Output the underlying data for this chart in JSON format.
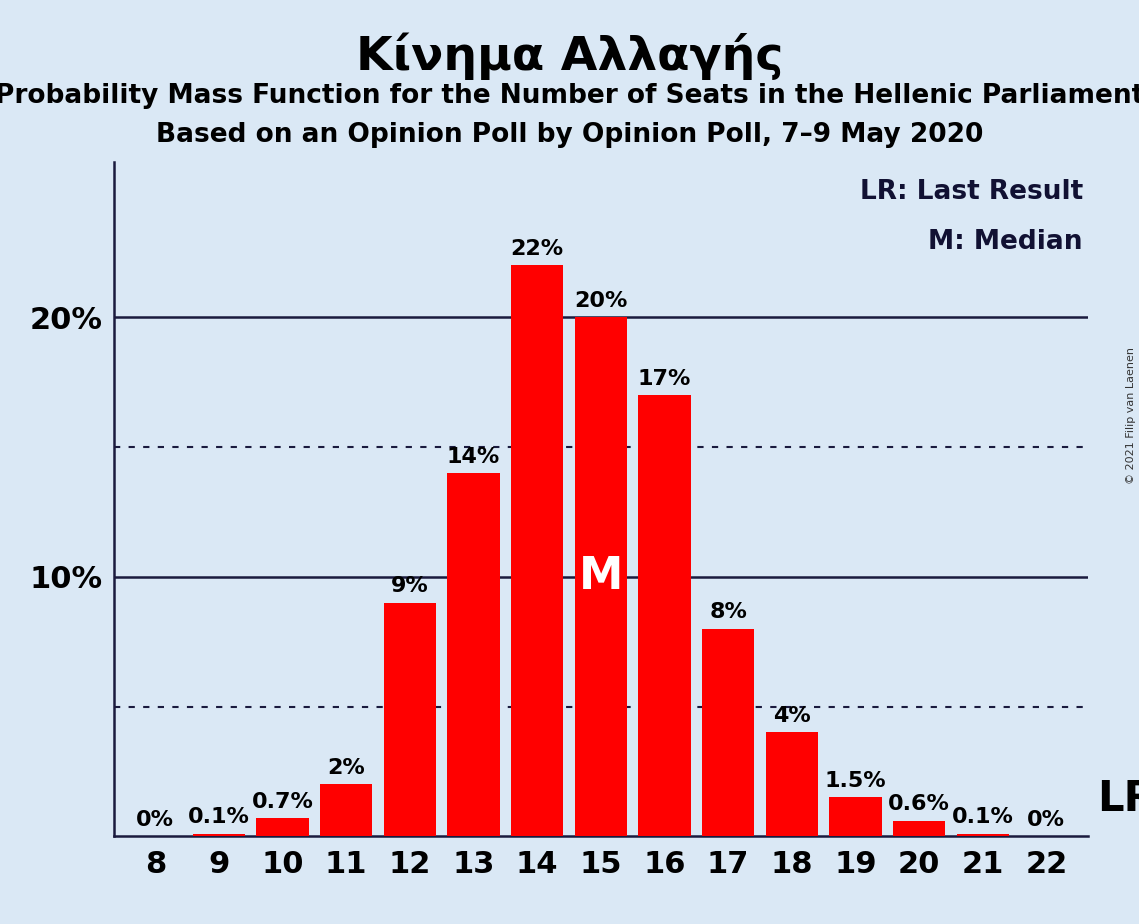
{
  "title": "Κίνημα Αλλαγής",
  "subtitle1": "Probability Mass Function for the Number of Seats in the Hellenic Parliament",
  "subtitle2": "Based on an Opinion Poll by Opinion Poll, 7–9 May 2020",
  "copyright": "© 2021 Filip van Laenen",
  "categories": [
    8,
    9,
    10,
    11,
    12,
    13,
    14,
    15,
    16,
    17,
    18,
    19,
    20,
    21,
    22
  ],
  "values": [
    0.0,
    0.1,
    0.7,
    2.0,
    9.0,
    14.0,
    22.0,
    20.0,
    17.0,
    8.0,
    4.0,
    1.5,
    0.6,
    0.1,
    0.0
  ],
  "bar_color": "#ff0000",
  "background_color": "#dae8f5",
  "bar_labels": [
    "0%",
    "0.1%",
    "0.7%",
    "2%",
    "9%",
    "14%",
    "22%",
    "20%",
    "17%",
    "8%",
    "4%",
    "1.5%",
    "0.6%",
    "0.1%",
    "0%"
  ],
  "median_bar_index": 7,
  "median_label": "M",
  "lr_label": "LR",
  "legend_lr": "LR: Last Result",
  "legend_m": "M: Median",
  "solid_lines": [
    10.0,
    20.0
  ],
  "dotted_lines": [
    5.0,
    15.0
  ],
  "ylim": [
    0,
    26
  ],
  "title_fontsize": 34,
  "subtitle_fontsize": 19,
  "bar_label_fontsize": 16,
  "axis_tick_fontsize": 22,
  "legend_fontsize": 19,
  "median_label_fontsize": 32,
  "lr_fontsize": 30
}
